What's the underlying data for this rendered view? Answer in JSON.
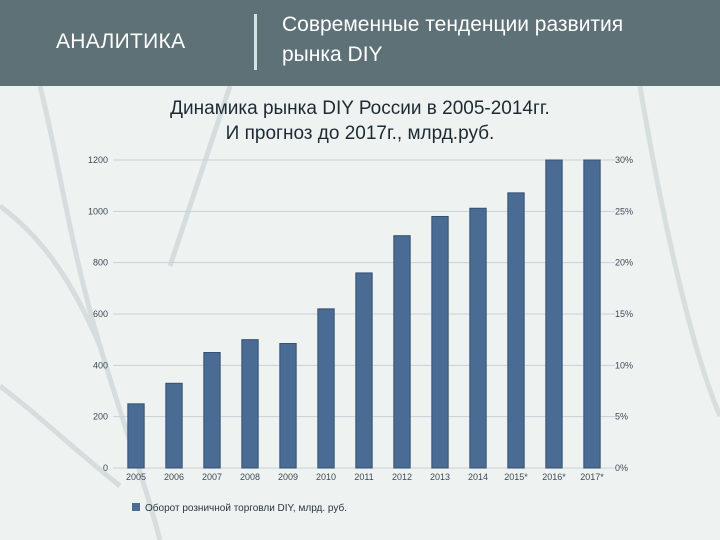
{
  "header": {
    "section_label": "АНАЛИТИКА",
    "title_line1": "Современные тенденции развития",
    "title_line2": "рынка DIY"
  },
  "colors": {
    "header_bg": "#5e7177",
    "bar": "#4a6b93",
    "bar_edge": "#35506f",
    "background": "#eef2f1"
  },
  "chart_data": {
    "type": "bar",
    "title_line1": "Динамика рынка DIY России в 2005-2014гг.",
    "title_line2": "И прогноз до 2017г., млрд.руб.",
    "categories": [
      "2005",
      "2006",
      "2007",
      "2008",
      "2009",
      "2010",
      "2011",
      "2012",
      "2013",
      "2014",
      "2015*",
      "2016*",
      "2017*"
    ],
    "series": [
      {
        "name": "Оборот розничной торговли DIY, млрд. руб.",
        "values": [
          250,
          330,
          450,
          500,
          485,
          620,
          760,
          905,
          980,
          1012,
          1072,
          1200,
          1200
        ]
      }
    ],
    "ylim": [
      0,
      1200
    ],
    "y_ticks": [
      "0",
      "200",
      "400",
      "600",
      "800",
      "1000",
      "1200"
    ],
    "y2_ticks": [
      "0%",
      "5%",
      "10%",
      "15%",
      "20%",
      "25%",
      "30%"
    ],
    "grid": true,
    "legend_position": "bottom-left"
  }
}
